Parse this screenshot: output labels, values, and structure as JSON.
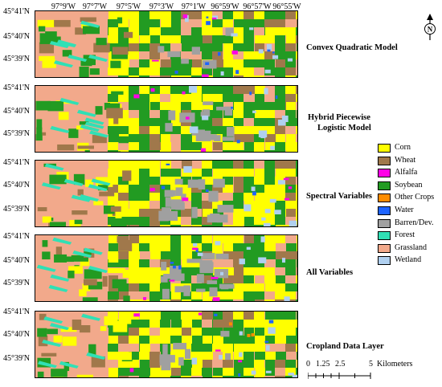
{
  "longitude_labels": [
    "97°9'W",
    "97°7'W",
    "97°5'W",
    "97°3'W",
    "97°1'W",
    "96°59'W",
    "96°57'W",
    "96°55'W"
  ],
  "latitude_labels": [
    "45°41'N",
    "45°40'N",
    "45°39'N"
  ],
  "panels": [
    {
      "label": "Convex Quadratic Model",
      "variant": "model-a"
    },
    {
      "label": "Hybrid Piecewise Logistic Model",
      "line1": "Hybrid Piecewise",
      "line2": "Logistic Model",
      "variant": "model-b"
    },
    {
      "label": "Spectral Variables",
      "variant": "model-c"
    },
    {
      "label": "All Variables",
      "variant": "model-c"
    },
    {
      "label": "Cropland Data Layer",
      "variant": "reference"
    }
  ],
  "legend": [
    {
      "label": "Corn",
      "color": "#ffff00"
    },
    {
      "label": "Wheat",
      "color": "#a0784b"
    },
    {
      "label": "Alfalfa",
      "color": "#ff00e6"
    },
    {
      "label": "Soybean",
      "color": "#229b22"
    },
    {
      "label": "Other Crops",
      "color": "#ff8c00"
    },
    {
      "label": "Water",
      "color": "#1e64ff"
    },
    {
      "label": "Barren/Dev.",
      "color": "#a0a0a0"
    },
    {
      "label": "Forest",
      "color": "#30e0b5"
    },
    {
      "label": "Grassland",
      "color": "#f2a98b"
    },
    {
      "label": "Wetland",
      "color": "#b0d0f0"
    }
  ],
  "scale_bar": {
    "ticks": [
      "0",
      "1.25",
      "2.5",
      "5"
    ],
    "unit": "Kilometers"
  },
  "north_arrow": {
    "label": "N",
    "icon": "north-arrow-icon"
  }
}
